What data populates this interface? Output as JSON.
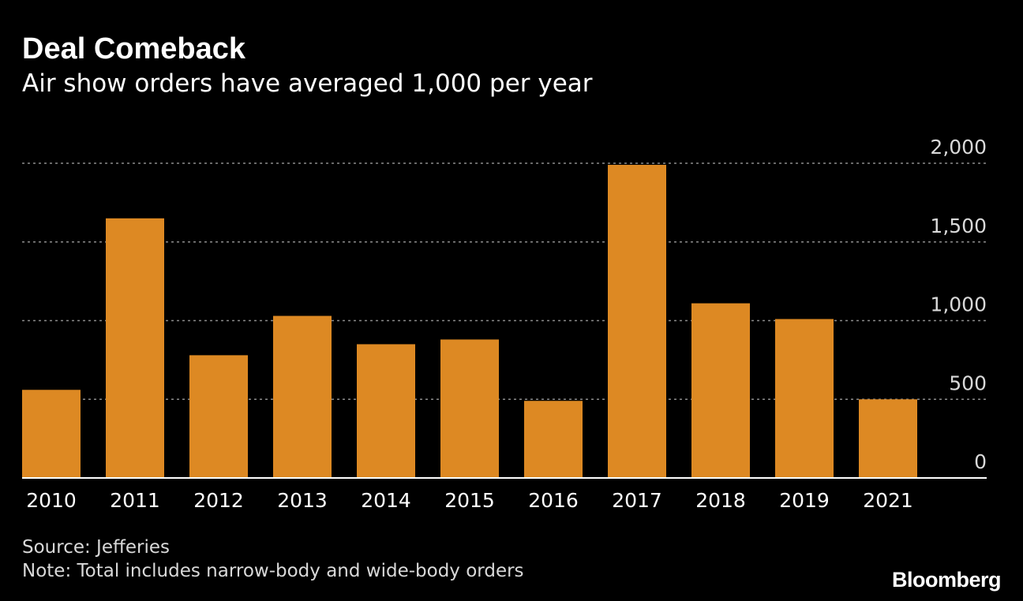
{
  "header": {
    "title": "Deal Comeback",
    "subtitle": "Air show orders have averaged 1,000 per year"
  },
  "chart_data": {
    "type": "bar",
    "title": "Deal Comeback",
    "subtitle": "Air show orders have averaged 1,000 per year",
    "categories": [
      "2010",
      "2011",
      "2012",
      "2013",
      "2014",
      "2015",
      "2016",
      "2017",
      "2018",
      "2019",
      "2021"
    ],
    "values": [
      560,
      1650,
      780,
      1030,
      850,
      880,
      490,
      1990,
      1110,
      1010,
      500
    ],
    "ylim": [
      0,
      2000
    ],
    "yticks": [
      0,
      500,
      1000,
      1500,
      2000
    ],
    "ytick_labels": [
      "0",
      "500",
      "1,000",
      "1,500",
      "2,000"
    ],
    "xlabel": "",
    "ylabel": "",
    "grid": true,
    "bar_color": "#dd8923"
  },
  "footer": {
    "source": "Source: Jefferies",
    "note": "Note: Total includes narrow-body and wide-body orders",
    "brand": "Bloomberg"
  }
}
